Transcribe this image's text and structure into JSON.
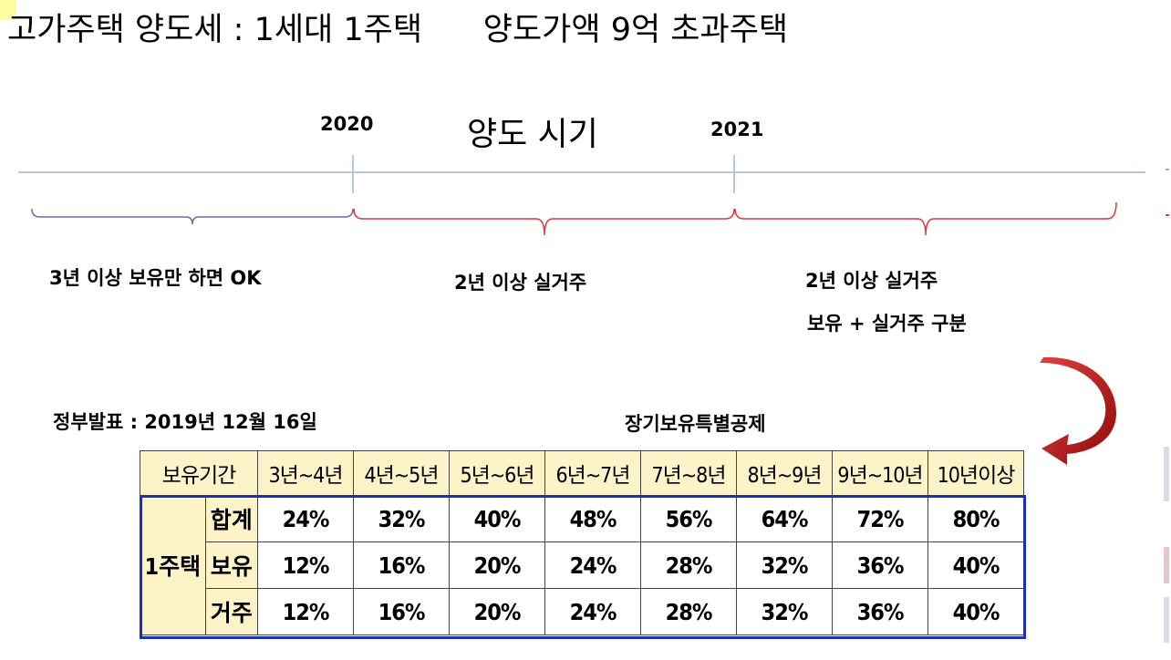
{
  "title": "고가주택 양도세 : 1세대 1주택      양도가액 9억 초과주택",
  "timeline": {
    "year_2020": "2020",
    "year_2021": "2021",
    "center_label": "양도 시기",
    "segment1_label": "3년 이상 보유만 하면 OK",
    "segment2_label": "2년 이상 실거주",
    "segment3_label_line1": "2년 이상 실거주",
    "segment3_label_line2": "보유 + 실거주 구분",
    "colors": {
      "axis": "#9db7d6",
      "segment1": "#6f6aa8",
      "segment2": "#e0343a",
      "arrow": "#b01616"
    }
  },
  "announcement": "정부발표 : 2019년 12월 16일",
  "table": {
    "title": "장기보유특별공제",
    "header_label": "보유기간",
    "columns": [
      "3년~4년",
      "4년~5년",
      "5년~6년",
      "6년~7년",
      "7년~8년",
      "8년~9년",
      "9년~10년",
      "10년이상"
    ],
    "group_label": "1주택",
    "rows": [
      {
        "label": "합계",
        "values": [
          "24%",
          "32%",
          "40%",
          "48%",
          "56%",
          "64%",
          "72%",
          "80%"
        ]
      },
      {
        "label": "보유",
        "values": [
          "12%",
          "16%",
          "20%",
          "24%",
          "28%",
          "32%",
          "36%",
          "40%"
        ]
      },
      {
        "label": "거주",
        "values": [
          "12%",
          "16%",
          "20%",
          "24%",
          "28%",
          "32%",
          "36%",
          "40%"
        ]
      }
    ],
    "colors": {
      "header_bg": "#fdf3c8",
      "border_highlight": "#1b2fb8"
    }
  }
}
